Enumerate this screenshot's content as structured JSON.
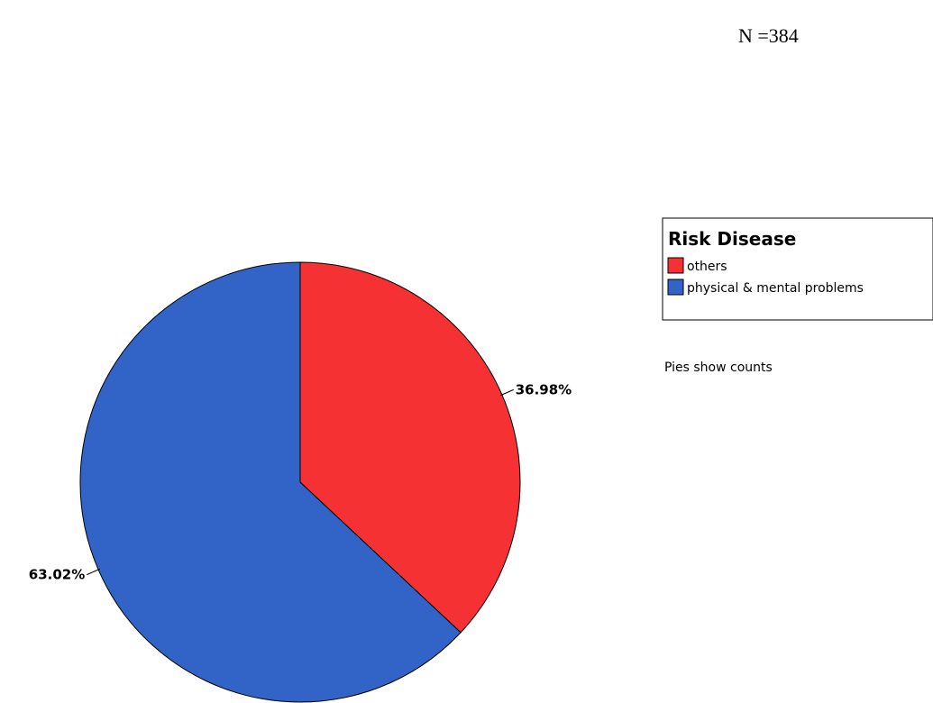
{
  "chart_data": {
    "type": "pie",
    "title": "",
    "n_label": "N =384",
    "legend_title": "Risk Disease",
    "legend_position": "right",
    "note": "Pies show counts",
    "slices": [
      {
        "name": "others",
        "value": 36.98,
        "label": "36.98%",
        "color": "#f63134"
      },
      {
        "name": "physical & mental problems",
        "value": 63.02,
        "label": "63.02%",
        "color": "#3264c8"
      }
    ]
  }
}
